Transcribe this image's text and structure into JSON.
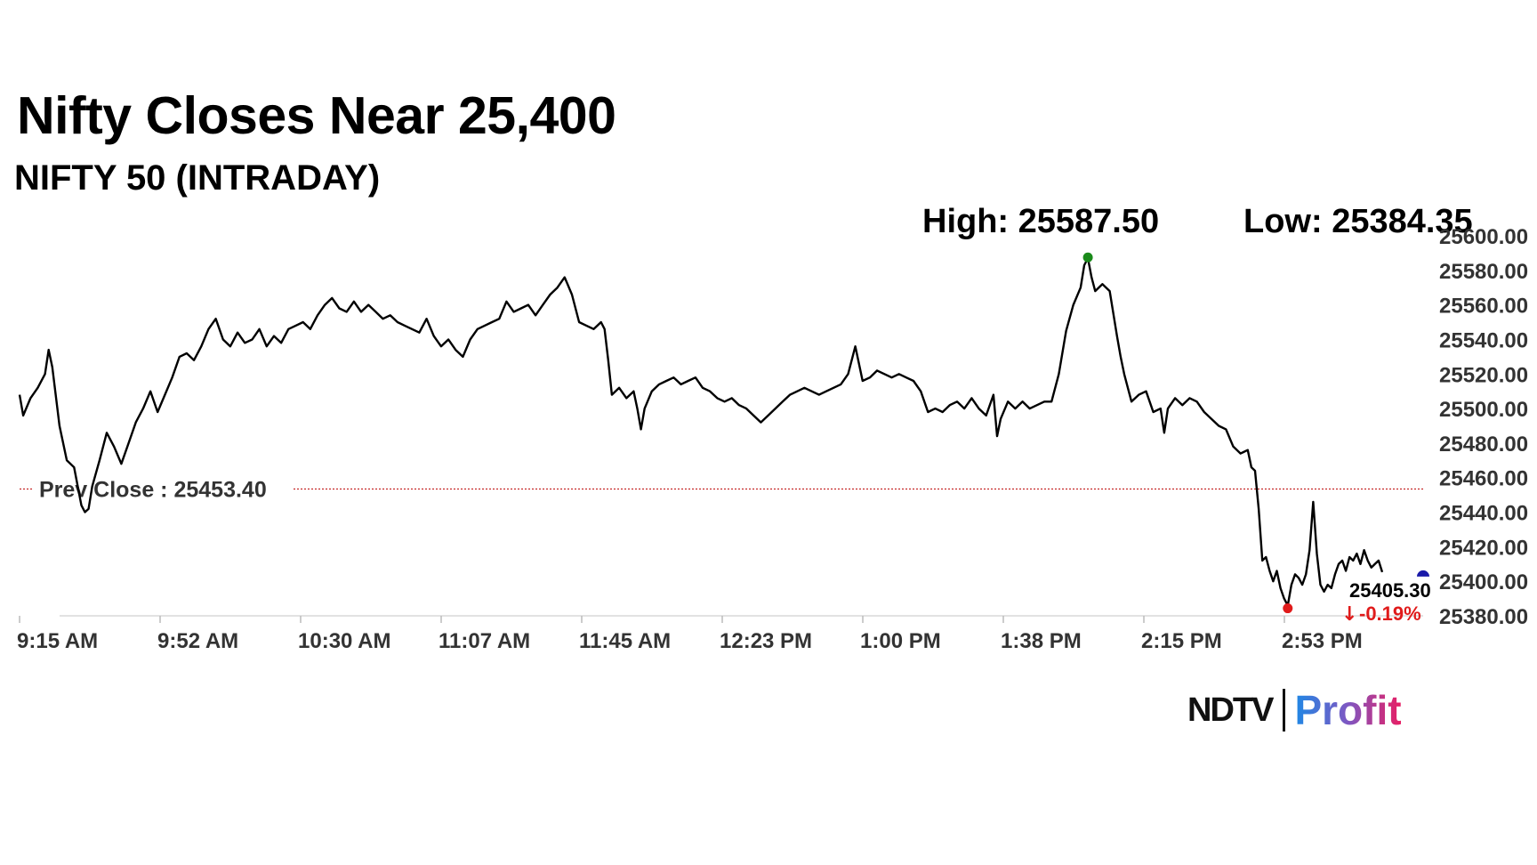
{
  "title": "Nifty Closes Near 25,400",
  "subtitle": "NIFTY 50 (INTRADAY)",
  "stats": {
    "high_label": "High: 25587.50",
    "low_label": "Low: 25384.35"
  },
  "logo": {
    "ndtv": "NDTV",
    "profit": "Profit"
  },
  "chart_data": {
    "type": "line",
    "title": "NIFTY 50 (INTRADAY)",
    "xlabel": "",
    "ylabel": "",
    "x_ticks": [
      "9:15 AM",
      "9:52 AM",
      "10:30 AM",
      "11:07 AM",
      "11:45 AM",
      "12:23 PM",
      "1:00 PM",
      "1:38 PM",
      "2:15 PM",
      "2:53 PM"
    ],
    "y_ticks": [
      "25380.00",
      "25400.00",
      "25420.00",
      "25440.00",
      "25460.00",
      "25480.00",
      "25500.00",
      "25520.00",
      "25540.00",
      "25560.00",
      "25580.00",
      "25600.00"
    ],
    "ylim": [
      25380,
      25600
    ],
    "xlim_minutes": [
      0,
      375
    ],
    "prev_close": 25453.4,
    "prev_close_label": "Prev Close : 25453.40",
    "high": 25587.5,
    "low": 25384.35,
    "last": 25405.3,
    "last_label": "25405.30",
    "change_label": "-0.19%",
    "colors": {
      "line": "#000000",
      "high_marker": "#1a8a1a",
      "low_marker": "#e01b1b",
      "last_marker": "#1a1aa8",
      "prev_close": "#c62828",
      "change": "#e01b1b"
    },
    "grid": false,
    "series": [
      {
        "name": "",
        "points": [
          [
            0,
            25508
          ],
          [
            1,
            25496
          ],
          [
            3,
            25506
          ],
          [
            5,
            25512
          ],
          [
            7,
            25520
          ],
          [
            8,
            25534
          ],
          [
            9,
            25524
          ],
          [
            11,
            25490
          ],
          [
            13,
            25470
          ],
          [
            15,
            25466
          ],
          [
            17,
            25444
          ],
          [
            18,
            25440
          ],
          [
            19,
            25442
          ],
          [
            20,
            25455
          ],
          [
            22,
            25470
          ],
          [
            24,
            25486
          ],
          [
            26,
            25478
          ],
          [
            28,
            25468
          ],
          [
            30,
            25480
          ],
          [
            32,
            25492
          ],
          [
            34,
            25500
          ],
          [
            36,
            25510
          ],
          [
            38,
            25498
          ],
          [
            40,
            25508
          ],
          [
            42,
            25518
          ],
          [
            44,
            25530
          ],
          [
            46,
            25532
          ],
          [
            48,
            25528
          ],
          [
            50,
            25536
          ],
          [
            52,
            25546
          ],
          [
            54,
            25552
          ],
          [
            56,
            25540
          ],
          [
            58,
            25536
          ],
          [
            60,
            25544
          ],
          [
            62,
            25538
          ],
          [
            64,
            25540
          ],
          [
            66,
            25546
          ],
          [
            68,
            25536
          ],
          [
            70,
            25542
          ],
          [
            72,
            25538
          ],
          [
            74,
            25546
          ],
          [
            76,
            25548
          ],
          [
            78,
            25550
          ],
          [
            80,
            25546
          ],
          [
            82,
            25554
          ],
          [
            84,
            25560
          ],
          [
            86,
            25564
          ],
          [
            88,
            25558
          ],
          [
            90,
            25556
          ],
          [
            92,
            25562
          ],
          [
            94,
            25556
          ],
          [
            96,
            25560
          ],
          [
            98,
            25556
          ],
          [
            100,
            25552
          ],
          [
            102,
            25554
          ],
          [
            104,
            25550
          ],
          [
            106,
            25548
          ],
          [
            108,
            25546
          ],
          [
            110,
            25544
          ],
          [
            112,
            25552
          ],
          [
            114,
            25542
          ],
          [
            116,
            25536
          ],
          [
            118,
            25540
          ],
          [
            120,
            25534
          ],
          [
            122,
            25530
          ],
          [
            124,
            25540
          ],
          [
            126,
            25546
          ],
          [
            128,
            25548
          ],
          [
            130,
            25550
          ],
          [
            132,
            25552
          ],
          [
            134,
            25562
          ],
          [
            136,
            25556
          ],
          [
            138,
            25558
          ],
          [
            140,
            25560
          ],
          [
            142,
            25554
          ],
          [
            144,
            25560
          ],
          [
            146,
            25566
          ],
          [
            148,
            25570
          ],
          [
            150,
            25576
          ],
          [
            152,
            25566
          ],
          [
            154,
            25550
          ],
          [
            156,
            25548
          ],
          [
            158,
            25546
          ],
          [
            160,
            25550
          ],
          [
            161,
            25546
          ],
          [
            162,
            25528
          ],
          [
            163,
            25508
          ],
          [
            165,
            25512
          ],
          [
            167,
            25506
          ],
          [
            169,
            25510
          ],
          [
            170,
            25500
          ],
          [
            171,
            25488
          ],
          [
            172,
            25500
          ],
          [
            174,
            25510
          ],
          [
            176,
            25514
          ],
          [
            178,
            25516
          ],
          [
            180,
            25518
          ],
          [
            182,
            25514
          ],
          [
            184,
            25516
          ],
          [
            186,
            25518
          ],
          [
            188,
            25512
          ],
          [
            190,
            25510
          ],
          [
            192,
            25506
          ],
          [
            194,
            25504
          ],
          [
            196,
            25506
          ],
          [
            198,
            25502
          ],
          [
            200,
            25500
          ],
          [
            202,
            25496
          ],
          [
            204,
            25492
          ],
          [
            206,
            25496
          ],
          [
            208,
            25500
          ],
          [
            210,
            25504
          ],
          [
            212,
            25508
          ],
          [
            214,
            25510
          ],
          [
            216,
            25512
          ],
          [
            218,
            25510
          ],
          [
            220,
            25508
          ],
          [
            222,
            25510
          ],
          [
            224,
            25512
          ],
          [
            226,
            25514
          ],
          [
            228,
            25520
          ],
          [
            230,
            25536
          ],
          [
            232,
            25516
          ],
          [
            234,
            25518
          ],
          [
            236,
            25522
          ],
          [
            238,
            25520
          ],
          [
            240,
            25518
          ],
          [
            242,
            25520
          ],
          [
            244,
            25518
          ],
          [
            246,
            25516
          ],
          [
            248,
            25510
          ],
          [
            250,
            25498
          ],
          [
            252,
            25500
          ],
          [
            254,
            25498
          ],
          [
            256,
            25502
          ],
          [
            258,
            25504
          ],
          [
            260,
            25500
          ],
          [
            262,
            25506
          ],
          [
            264,
            25500
          ],
          [
            266,
            25496
          ],
          [
            268,
            25508
          ],
          [
            269,
            25484
          ],
          [
            270,
            25494
          ],
          [
            272,
            25504
          ],
          [
            274,
            25500
          ],
          [
            276,
            25504
          ],
          [
            278,
            25500
          ],
          [
            280,
            25502
          ],
          [
            282,
            25504
          ],
          [
            284,
            25504
          ],
          [
            286,
            25520
          ],
          [
            288,
            25545
          ],
          [
            290,
            25560
          ],
          [
            292,
            25570
          ],
          [
            293,
            25583
          ],
          [
            294,
            25587
          ],
          [
            295,
            25576
          ],
          [
            296,
            25568
          ],
          [
            298,
            25572
          ],
          [
            300,
            25568
          ],
          [
            302,
            25542
          ],
          [
            303,
            25530
          ],
          [
            304,
            25520
          ],
          [
            306,
            25504
          ],
          [
            308,
            25508
          ],
          [
            310,
            25510
          ],
          [
            312,
            25498
          ],
          [
            314,
            25500
          ],
          [
            315,
            25486
          ],
          [
            316,
            25500
          ],
          [
            318,
            25506
          ],
          [
            320,
            25502
          ],
          [
            322,
            25506
          ],
          [
            324,
            25504
          ],
          [
            326,
            25498
          ],
          [
            328,
            25494
          ],
          [
            330,
            25490
          ],
          [
            332,
            25488
          ],
          [
            334,
            25478
          ],
          [
            336,
            25474
          ],
          [
            338,
            25476
          ],
          [
            339,
            25466
          ],
          [
            340,
            25464
          ],
          [
            341,
            25442
          ],
          [
            342,
            25412
          ],
          [
            343,
            25414
          ],
          [
            344,
            25406
          ],
          [
            345,
            25400
          ],
          [
            346,
            25406
          ],
          [
            347,
            25396
          ],
          [
            348,
            25390
          ],
          [
            349,
            25386
          ],
          [
            350,
            25398
          ],
          [
            351,
            25404
          ],
          [
            352,
            25402
          ],
          [
            353,
            25398
          ],
          [
            354,
            25404
          ],
          [
            355,
            25418
          ],
          [
            356,
            25446
          ],
          [
            357,
            25416
          ],
          [
            358,
            25398
          ],
          [
            359,
            25394
          ],
          [
            360,
            25398
          ],
          [
            361,
            25396
          ],
          [
            362,
            25404
          ],
          [
            363,
            25410
          ],
          [
            364,
            25412
          ],
          [
            365,
            25406
          ],
          [
            366,
            25414
          ],
          [
            367,
            25412
          ],
          [
            368,
            25416
          ],
          [
            369,
            25410
          ],
          [
            370,
            25418
          ],
          [
            371,
            25412
          ],
          [
            372,
            25408
          ],
          [
            373,
            25410
          ],
          [
            374,
            25412
          ],
          [
            375,
            25405.3
          ]
        ]
      }
    ]
  }
}
